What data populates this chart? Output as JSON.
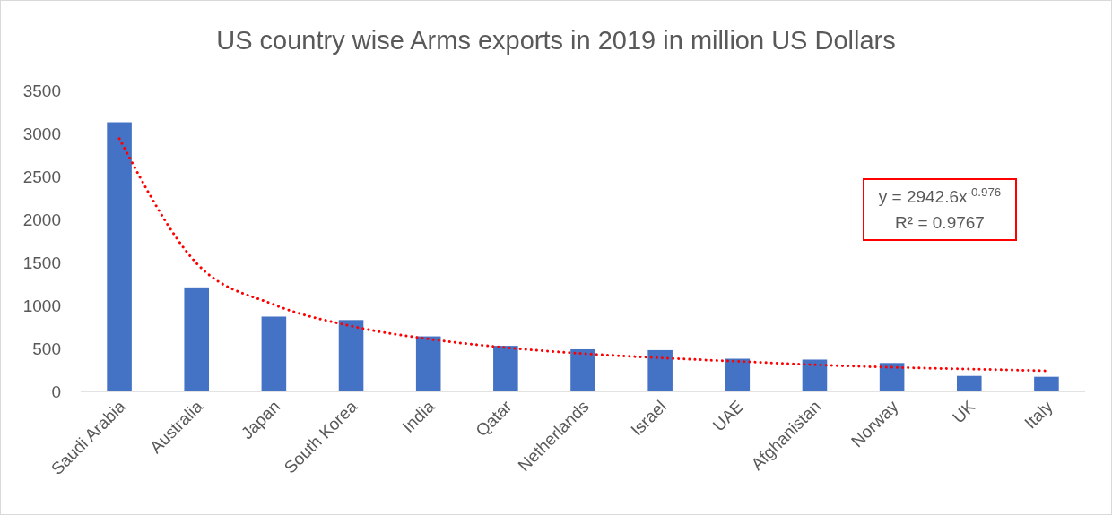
{
  "chart_data": {
    "type": "bar",
    "title": "US country wise Arms exports in 2019 in million US Dollars",
    "categories": [
      "Saudi Arabia",
      "Australia",
      "Japan",
      "South Korea",
      "India",
      "Qatar",
      "Netherlands",
      "Israel",
      "UAE",
      "Afghanistan",
      "Norway",
      "UK",
      "Italy"
    ],
    "series": [
      {
        "color": "#4472c4",
        "values": [
          3130,
          1210,
          870,
          830,
          640,
          530,
          490,
          480,
          380,
          370,
          330,
          180,
          170
        ]
      },
      {
        "type": "line",
        "color": "#ff0000",
        "line_style": "dotted",
        "marker": "none",
        "values": [
          2940,
          1490,
          1010,
          760,
          610,
          510,
          440,
          390,
          350,
          310,
          280,
          260,
          240
        ]
      }
    ],
    "ylim": [
      0,
      3500
    ],
    "yticks": [
      0,
      500,
      1000,
      1500,
      2000,
      2500,
      3000,
      3500
    ],
    "grid": false,
    "annotations": [
      "y = 2942.6x$^{-0.976}$",
      "R² = 0.9767"
    ]
  }
}
